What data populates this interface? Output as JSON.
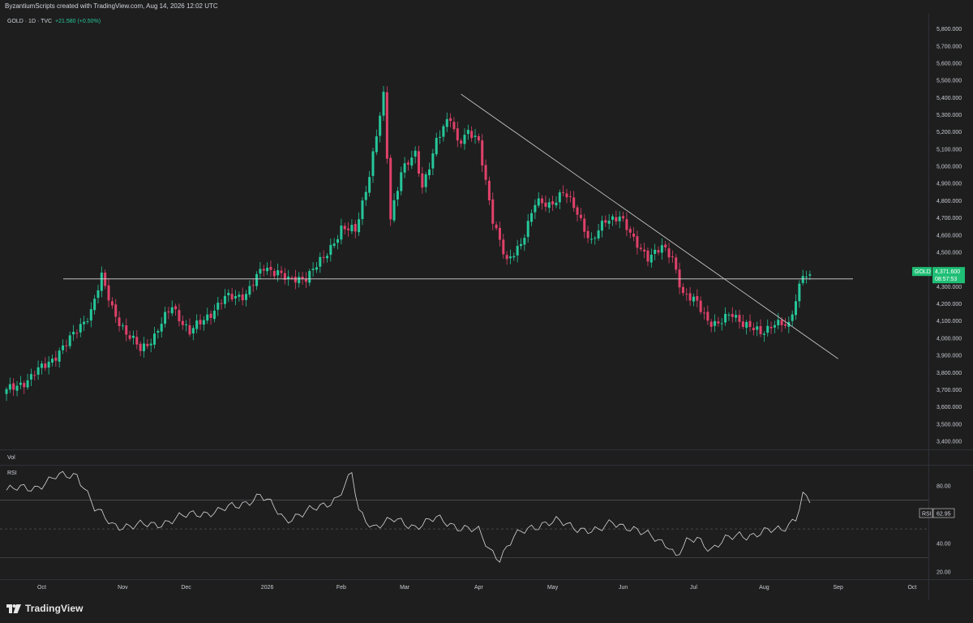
{
  "header": {
    "credit": "ByzantiumScripts created with TradingView.com, Aug 14, 2026 12:02 UTC"
  },
  "legend": {
    "symbol": "GOLD · 1D · TVC",
    "change": "+21.580 (+0.50%)"
  },
  "price_tag": {
    "symbol": "GOLD",
    "price": "4,371.600",
    "countdown": "08:57:53"
  },
  "panes": {
    "volume_label": "Vol",
    "rsi_label": "RSI",
    "rsi_value": "62.95"
  },
  "brand": {
    "name": "TradingView"
  },
  "colors": {
    "background": "#1e1e1e",
    "up": "#26c79a",
    "down": "#e0416a",
    "line": "#d7d7d7",
    "grid": "#363a45",
    "axis_text": "#c9ccd4",
    "price_tag_bg": "#1fbf75"
  },
  "chart_data": {
    "type": "candlestick",
    "price_axis": {
      "ticks": [
        "5,800.000",
        "5,700.000",
        "5,600.000",
        "5,500.000",
        "5,400.000",
        "5,300.000",
        "5,200.000",
        "5,100.000",
        "5,000.000",
        "4,900.000",
        "4,800.000",
        "4,700.000",
        "4,600.000",
        "4,500.000",
        "4,400.000",
        "4,300.000",
        "4,200.000",
        "4,100.000",
        "4,000.000",
        "3,900.000",
        "3,800.000",
        "3,700.000",
        "3,600.000",
        "3,500.000",
        "3,400.000"
      ],
      "ylim": [
        3400,
        5850
      ]
    },
    "time_axis": {
      "ticks": [
        "Oct",
        "Nov",
        "Dec",
        "2026",
        "Feb",
        "Mar",
        "Apr",
        "May",
        "Jun",
        "Jul",
        "Aug",
        "Sep",
        "Oct"
      ]
    },
    "rsi_axis": {
      "ticks": [
        "80.00",
        "40.00",
        "20.00"
      ],
      "ylim": [
        15,
        93
      ],
      "upper_band": 70,
      "mid_band": 50,
      "lower_band": 30
    },
    "ohlc_anchors": [
      [
        0,
        3690
      ],
      [
        6,
        3760
      ],
      [
        12,
        3860
      ],
      [
        18,
        3990
      ],
      [
        24,
        4160
      ],
      [
        27,
        4350
      ],
      [
        30,
        4180
      ],
      [
        34,
        4020
      ],
      [
        38,
        3940
      ],
      [
        42,
        4010
      ],
      [
        47,
        4190
      ],
      [
        52,
        4030
      ],
      [
        58,
        4150
      ],
      [
        62,
        4230
      ],
      [
        68,
        4260
      ],
      [
        73,
        4410
      ],
      [
        77,
        4390
      ],
      [
        80,
        4330
      ],
      [
        85,
        4360
      ],
      [
        90,
        4460
      ],
      [
        95,
        4640
      ],
      [
        99,
        4620
      ],
      [
        103,
        4960
      ],
      [
        107,
        5400
      ],
      [
        109,
        4700
      ],
      [
        112,
        4980
      ],
      [
        116,
        5060
      ],
      [
        118,
        4880
      ],
      [
        122,
        5150
      ],
      [
        126,
        5280
      ],
      [
        128,
        5150
      ],
      [
        131,
        5200
      ],
      [
        134,
        5130
      ],
      [
        138,
        4700
      ],
      [
        142,
        4430
      ],
      [
        146,
        4560
      ],
      [
        150,
        4780
      ],
      [
        154,
        4780
      ],
      [
        158,
        4850
      ],
      [
        162,
        4730
      ],
      [
        166,
        4560
      ],
      [
        170,
        4680
      ],
      [
        174,
        4720
      ],
      [
        178,
        4560
      ],
      [
        182,
        4480
      ],
      [
        186,
        4520
      ],
      [
        189,
        4470
      ],
      [
        192,
        4260
      ],
      [
        196,
        4200
      ],
      [
        199,
        4110
      ],
      [
        202,
        4080
      ],
      [
        206,
        4140
      ],
      [
        210,
        4080
      ],
      [
        214,
        4020
      ],
      [
        218,
        4100
      ],
      [
        222,
        4060
      ],
      [
        226,
        4390
      ],
      [
        228,
        4360
      ]
    ],
    "last_price": 4371.6,
    "horizontal_line": 4345,
    "trendline": [
      [
        129,
        5420
      ],
      [
        236,
        3880
      ]
    ],
    "rsi_anchors": [
      [
        0,
        77
      ],
      [
        8,
        79
      ],
      [
        14,
        86
      ],
      [
        20,
        88
      ],
      [
        22,
        80
      ],
      [
        25,
        64
      ],
      [
        30,
        53
      ],
      [
        36,
        52
      ],
      [
        42,
        53
      ],
      [
        48,
        57
      ],
      [
        54,
        61
      ],
      [
        60,
        62
      ],
      [
        66,
        67
      ],
      [
        72,
        73
      ],
      [
        76,
        65
      ],
      [
        79,
        57
      ],
      [
        84,
        60
      ],
      [
        90,
        67
      ],
      [
        94,
        72
      ],
      [
        98,
        88
      ],
      [
        100,
        62
      ],
      [
        104,
        52
      ],
      [
        110,
        56
      ],
      [
        116,
        52
      ],
      [
        122,
        57
      ],
      [
        128,
        52
      ],
      [
        134,
        48
      ],
      [
        137,
        36
      ],
      [
        140,
        30
      ],
      [
        144,
        44
      ],
      [
        148,
        50
      ],
      [
        152,
        54
      ],
      [
        156,
        55
      ],
      [
        160,
        52
      ],
      [
        164,
        50
      ],
      [
        168,
        48
      ],
      [
        172,
        55
      ],
      [
        176,
        52
      ],
      [
        180,
        47
      ],
      [
        184,
        44
      ],
      [
        188,
        39
      ],
      [
        190,
        30
      ],
      [
        193,
        40
      ],
      [
        196,
        44
      ],
      [
        200,
        36
      ],
      [
        204,
        42
      ],
      [
        208,
        46
      ],
      [
        212,
        46
      ],
      [
        216,
        48
      ],
      [
        220,
        50
      ],
      [
        224,
        58
      ],
      [
        226,
        73
      ],
      [
        228,
        69
      ]
    ]
  }
}
